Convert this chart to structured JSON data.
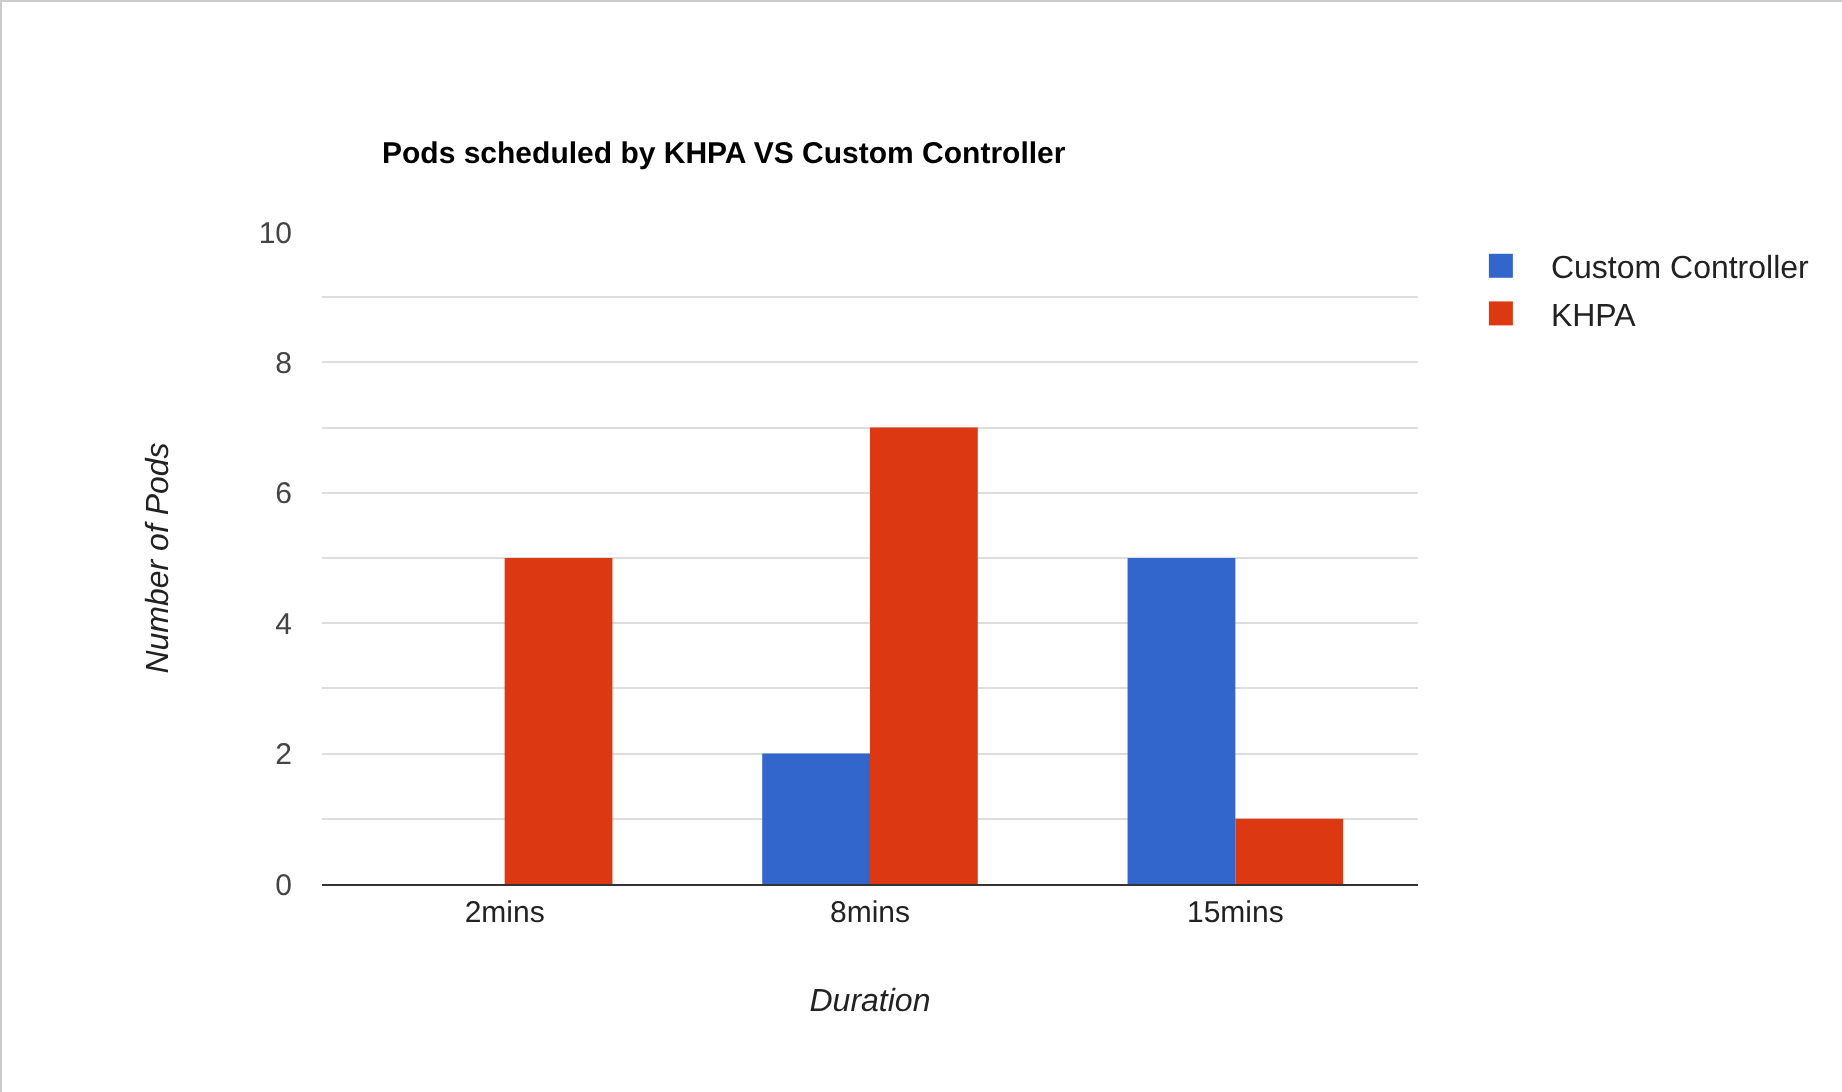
{
  "chart_data": {
    "type": "bar",
    "title": "Pods scheduled by KHPA VS Custom Controller",
    "xlabel": "Duration",
    "ylabel": "Number of Pods",
    "categories": [
      "2mins",
      "8mins",
      "15mins"
    ],
    "series": [
      {
        "name": "Custom Controller",
        "color": "#3366cc",
        "values": [
          0,
          2,
          5
        ]
      },
      {
        "name": "KHPA",
        "color": "#dc3912",
        "values": [
          5,
          7,
          1
        ]
      }
    ],
    "ylim": [
      0,
      10
    ],
    "yticks": [
      0,
      {
        "value": 1,
        "label": null
      },
      2,
      {
        "value": 3,
        "label": null
      },
      4,
      {
        "value": 5,
        "label": null
      },
      6,
      {
        "value": 7,
        "label": null
      },
      8,
      {
        "value": 9,
        "label": null
      },
      10
    ],
    "grid": "y",
    "legend": "top right"
  }
}
